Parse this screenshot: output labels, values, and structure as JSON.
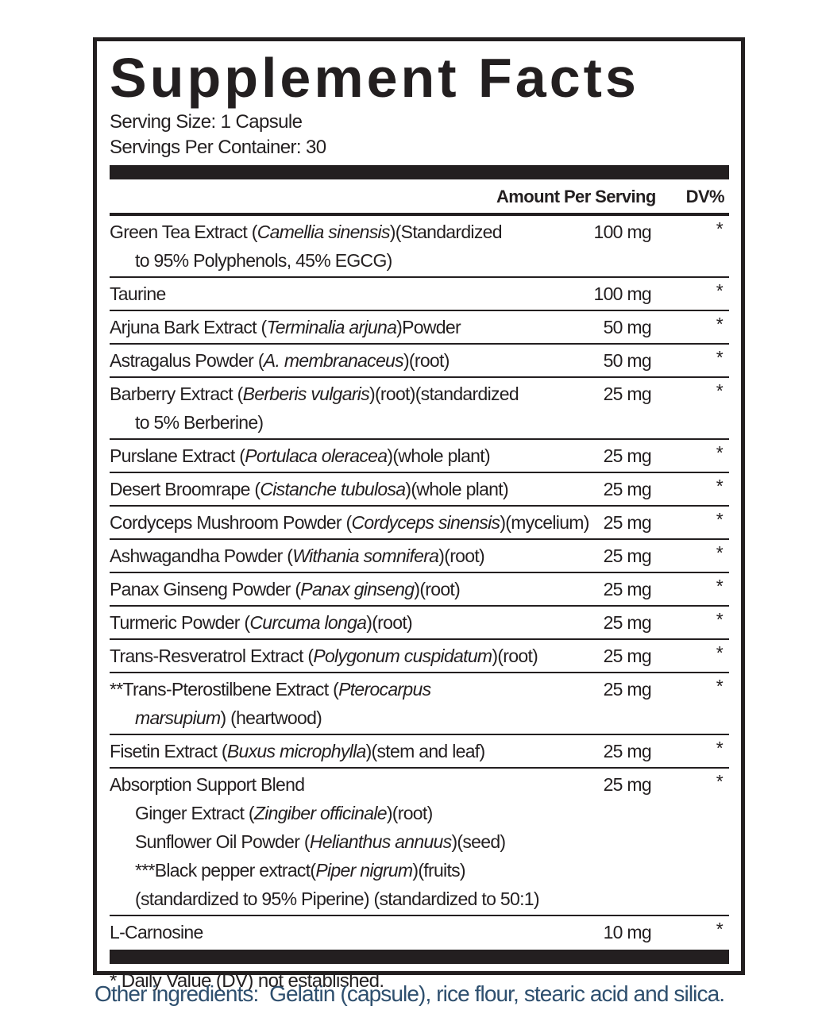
{
  "title": "Supplement Facts",
  "serving_size": "Serving Size: 1 Capsule",
  "servings_per_container": "Servings Per Container: 30",
  "header": {
    "amount": "Amount Per Serving",
    "dv": "DV%"
  },
  "rows": [
    {
      "lines": [
        [
          {
            "text": "Green Tea Extract ("
          },
          {
            "text": "Camellia sinensis",
            "italic": true
          },
          {
            "text": ")(Standardized"
          }
        ],
        [
          {
            "text": "to 95% Polyphenols, 45% EGCG)"
          }
        ]
      ],
      "amount": "100 mg",
      "dv": "*"
    },
    {
      "lines": [
        [
          {
            "text": "Taurine"
          }
        ]
      ],
      "amount": "100 mg",
      "dv": "*"
    },
    {
      "lines": [
        [
          {
            "text": "Arjuna Bark Extract ("
          },
          {
            "text": "Terminalia arjuna",
            "italic": true
          },
          {
            "text": ")Powder"
          }
        ]
      ],
      "amount": "50 mg",
      "dv": "*"
    },
    {
      "lines": [
        [
          {
            "text": "Astragalus Powder ("
          },
          {
            "text": "A. membranaceus",
            "italic": true
          },
          {
            "text": ")(root)"
          }
        ]
      ],
      "amount": "50 mg",
      "dv": "*"
    },
    {
      "lines": [
        [
          {
            "text": "Barberry Extract ("
          },
          {
            "text": "Berberis vulgaris",
            "italic": true
          },
          {
            "text": ")(root)(standardized"
          }
        ],
        [
          {
            "text": "to 5% Berberine)"
          }
        ]
      ],
      "amount": "25 mg",
      "dv": "*"
    },
    {
      "lines": [
        [
          {
            "text": "Purslane Extract ("
          },
          {
            "text": "Portulaca oleracea",
            "italic": true
          },
          {
            "text": ")(whole plant)"
          }
        ]
      ],
      "amount": "25 mg",
      "dv": "*"
    },
    {
      "lines": [
        [
          {
            "text": "Desert Broomrape ("
          },
          {
            "text": "Cistanche tubulosa",
            "italic": true
          },
          {
            "text": ")(whole plant)"
          }
        ]
      ],
      "amount": "25 mg",
      "dv": "*"
    },
    {
      "lines": [
        [
          {
            "text": "Cordyceps Mushroom Powder ("
          },
          {
            "text": "Cordyceps sinensis",
            "italic": true
          },
          {
            "text": ")(mycelium)"
          }
        ]
      ],
      "amount": "25 mg",
      "dv": "*"
    },
    {
      "lines": [
        [
          {
            "text": "Ashwagandha Powder ("
          },
          {
            "text": "Withania somnifera",
            "italic": true
          },
          {
            "text": ")(root)"
          }
        ]
      ],
      "amount": "25 mg",
      "dv": "*"
    },
    {
      "lines": [
        [
          {
            "text": "Panax Ginseng Powder ("
          },
          {
            "text": "Panax ginseng",
            "italic": true
          },
          {
            "text": ")(root)"
          }
        ]
      ],
      "amount": "25 mg",
      "dv": "*"
    },
    {
      "lines": [
        [
          {
            "text": "Turmeric Powder ("
          },
          {
            "text": "Curcuma longa",
            "italic": true
          },
          {
            "text": ")(root)"
          }
        ]
      ],
      "amount": "25 mg",
      "dv": "*"
    },
    {
      "lines": [
        [
          {
            "text": "Trans-Resveratrol Extract ("
          },
          {
            "text": "Polygonum cuspidatum",
            "italic": true
          },
          {
            "text": ")(root)"
          }
        ]
      ],
      "amount": "25 mg",
      "dv": "*"
    },
    {
      "lines": [
        [
          {
            "text": "**Trans-Pterostilbene Extract ("
          },
          {
            "text": "Pterocarpus",
            "italic": true
          }
        ],
        [
          {
            "text": "marsupium",
            "italic": true
          },
          {
            "text": ") (heartwood)"
          }
        ]
      ],
      "amount": "25 mg",
      "dv": "*"
    },
    {
      "lines": [
        [
          {
            "text": "Fisetin Extract ("
          },
          {
            "text": "Buxus microphylla",
            "italic": true
          },
          {
            "text": ")(stem and leaf)"
          }
        ]
      ],
      "amount": "25 mg",
      "dv": "*"
    },
    {
      "lines": [
        [
          {
            "text": "Absorption Support Blend"
          }
        ],
        [
          {
            "text": "Ginger Extract ("
          },
          {
            "text": "Zingiber officinale",
            "italic": true
          },
          {
            "text": ")(root)"
          }
        ],
        [
          {
            "text": "Sunflower Oil Powder ("
          },
          {
            "text": "Helianthus annuus",
            "italic": true
          },
          {
            "text": ")(seed)"
          }
        ],
        [
          {
            "text": "***Black pepper extract("
          },
          {
            "text": "Piper nigrum",
            "italic": true
          },
          {
            "text": ")(fruits)"
          }
        ],
        [
          {
            "text": "(standardized to 95% Piperine) (standardized to 50:1)"
          }
        ]
      ],
      "amount": "25 mg",
      "dv": "*"
    },
    {
      "lines": [
        [
          {
            "text": "L-Carnosine"
          }
        ]
      ],
      "amount": "10 mg",
      "dv": "*"
    }
  ],
  "footnote": "* Daily Value (DV) not established.",
  "other_ingredients": "Other ingredients:  Gelatin (capsule), rice flour, stearic acid and silica."
}
